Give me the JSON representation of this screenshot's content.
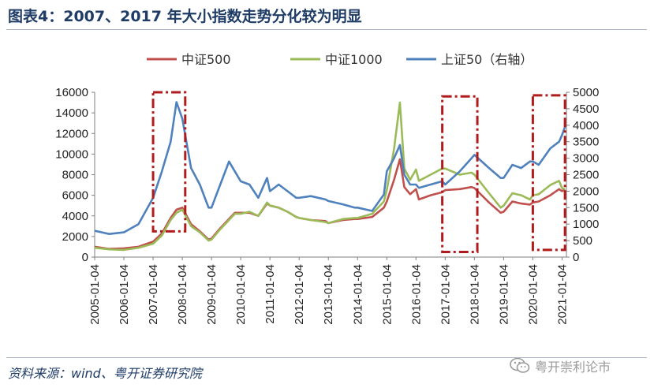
{
  "header": {
    "title": "图表4：2007、2017 年大小指数走势分化较为明显"
  },
  "footer": {
    "source": "资料来源：wind、粤开证券研究院",
    "watermark": "粤开崇利论市"
  },
  "chart_data": {
    "type": "line",
    "title": "图表4：2007、2017 年大小指数走势分化较为明显",
    "x_tick_labels": [
      "2005-01-04",
      "2006-01-04",
      "2007-01-04",
      "2008-01-04",
      "2009-01-04",
      "2010-01-04",
      "2011-01-04",
      "2012-01-04",
      "2013-01-04",
      "2014-01-04",
      "2015-01-04",
      "2016-01-04",
      "2017-01-04",
      "2018-01-04",
      "2019-01-04",
      "2020-01-04",
      "2021-01-04"
    ],
    "y_left": {
      "ticks": [
        0,
        2000,
        4000,
        6000,
        8000,
        10000,
        12000,
        14000,
        16000
      ],
      "range": [
        0,
        16000
      ]
    },
    "y_right": {
      "ticks": [
        0,
        500,
        1000,
        1500,
        2000,
        2500,
        3000,
        3500,
        4000,
        4500,
        5000
      ],
      "range": [
        0,
        5000
      ]
    },
    "legend_position": "top",
    "grid": false,
    "series": [
      {
        "name": "中证500",
        "axis": "left",
        "color": "#c0504d",
        "x": [
          2005.0,
          2005.5,
          2006.0,
          2006.5,
          2007.0,
          2007.3,
          2007.6,
          2007.8,
          2008.0,
          2008.3,
          2008.6,
          2008.9,
          2009.0,
          2009.3,
          2009.6,
          2009.8,
          2010.0,
          2010.3,
          2010.6,
          2010.9,
          2011.0,
          2011.3,
          2011.6,
          2011.9,
          2012.0,
          2012.4,
          2012.9,
          2013.0,
          2013.5,
          2013.9,
          2014.0,
          2014.5,
          2014.9,
          2015.0,
          2015.25,
          2015.45,
          2015.6,
          2015.8,
          2016.0,
          2016.1,
          2016.5,
          2016.9,
          2017.0,
          2017.5,
          2017.9,
          2018.0,
          2018.5,
          2018.9,
          2019.0,
          2019.3,
          2019.6,
          2019.9,
          2020.0,
          2020.2,
          2020.6,
          2020.9,
          2021.0,
          2021.1
        ],
        "y": [
          1000,
          800,
          850,
          1000,
          1500,
          2300,
          3800,
          4600,
          4800,
          3200,
          2500,
          1700,
          1800,
          2800,
          3700,
          4300,
          4300,
          4300,
          4000,
          5200,
          5000,
          4800,
          4400,
          3900,
          3800,
          3600,
          3500,
          3300,
          3600,
          3700,
          3700,
          3900,
          4800,
          5400,
          7500,
          9500,
          6800,
          6100,
          6600,
          5600,
          6000,
          6300,
          6500,
          6600,
          6800,
          6700,
          5300,
          4300,
          4400,
          5400,
          5200,
          5100,
          5300,
          5400,
          6000,
          6600,
          6400,
          6600
        ]
      },
      {
        "name": "中证1000",
        "axis": "left",
        "color": "#9bbb59",
        "x": [
          2005.0,
          2005.5,
          2006.0,
          2006.5,
          2007.0,
          2007.3,
          2007.6,
          2007.8,
          2008.0,
          2008.3,
          2008.6,
          2008.9,
          2009.0,
          2009.3,
          2009.6,
          2009.8,
          2010.0,
          2010.3,
          2010.6,
          2010.9,
          2011.0,
          2011.3,
          2011.6,
          2011.9,
          2012.0,
          2012.4,
          2012.9,
          2013.0,
          2013.5,
          2013.9,
          2014.0,
          2014.5,
          2014.9,
          2015.0,
          2015.25,
          2015.45,
          2015.6,
          2015.8,
          2016.0,
          2016.1,
          2016.5,
          2016.9,
          2017.0,
          2017.5,
          2017.9,
          2018.0,
          2018.5,
          2018.9,
          2019.0,
          2019.3,
          2019.6,
          2019.9,
          2020.0,
          2020.2,
          2020.6,
          2020.9,
          2021.0,
          2021.1
        ],
        "y": [
          900,
          750,
          700,
          900,
          1300,
          2100,
          3600,
          4300,
          4600,
          3000,
          2400,
          1600,
          1700,
          2700,
          3600,
          4200,
          4200,
          4400,
          4000,
          5300,
          5000,
          4800,
          4400,
          3900,
          3800,
          3600,
          3400,
          3300,
          3700,
          3800,
          3800,
          4200,
          5400,
          6500,
          10500,
          15000,
          8600,
          7500,
          8500,
          7400,
          8000,
          8600,
          8600,
          8000,
          8200,
          8000,
          6200,
          4800,
          5000,
          6200,
          6000,
          5600,
          6000,
          6100,
          7000,
          7400,
          6700,
          6600
        ]
      },
      {
        "name": "上证50（右轴）",
        "axis": "right",
        "color": "#4f81bd",
        "x": [
          2005.0,
          2005.5,
          2006.0,
          2006.5,
          2007.0,
          2007.3,
          2007.6,
          2007.8,
          2008.0,
          2008.3,
          2008.6,
          2008.9,
          2009.0,
          2009.3,
          2009.6,
          2009.8,
          2010.0,
          2010.3,
          2010.6,
          2010.9,
          2011.0,
          2011.3,
          2011.6,
          2011.9,
          2012.0,
          2012.4,
          2012.9,
          2013.0,
          2013.5,
          2013.9,
          2014.0,
          2014.5,
          2014.9,
          2015.0,
          2015.25,
          2015.45,
          2015.6,
          2015.8,
          2016.0,
          2016.1,
          2016.5,
          2016.9,
          2017.0,
          2017.5,
          2017.9,
          2018.0,
          2018.5,
          2018.9,
          2019.0,
          2019.3,
          2019.6,
          2019.9,
          2020.0,
          2020.2,
          2020.6,
          2020.9,
          2021.0,
          2021.1
        ],
        "y": [
          800,
          700,
          750,
          1000,
          1800,
          2600,
          3500,
          4700,
          4200,
          2700,
          2200,
          1500,
          1500,
          2200,
          2900,
          2600,
          2300,
          2200,
          1800,
          2400,
          2000,
          2200,
          2000,
          1800,
          1800,
          1850,
          1750,
          1700,
          1600,
          1500,
          1500,
          1400,
          1900,
          2600,
          3000,
          3400,
          2500,
          2200,
          2200,
          2100,
          2200,
          2300,
          2200,
          2600,
          3000,
          3100,
          2700,
          2400,
          2400,
          2800,
          2700,
          2900,
          2900,
          2800,
          3300,
          3500,
          3700,
          3950
        ]
      }
    ],
    "annotations": [
      {
        "type": "dashed-rect",
        "x_range": [
          2007.0,
          2008.1
        ],
        "y_range_left": [
          2500,
          16000
        ]
      },
      {
        "type": "dashed-rect",
        "x_range": [
          2016.9,
          2018.1
        ],
        "y_range_left": [
          500,
          15600
        ]
      },
      {
        "type": "dashed-rect",
        "x_range": [
          2020.0,
          2021.1
        ],
        "y_range_left": [
          700,
          15700
        ]
      }
    ]
  }
}
